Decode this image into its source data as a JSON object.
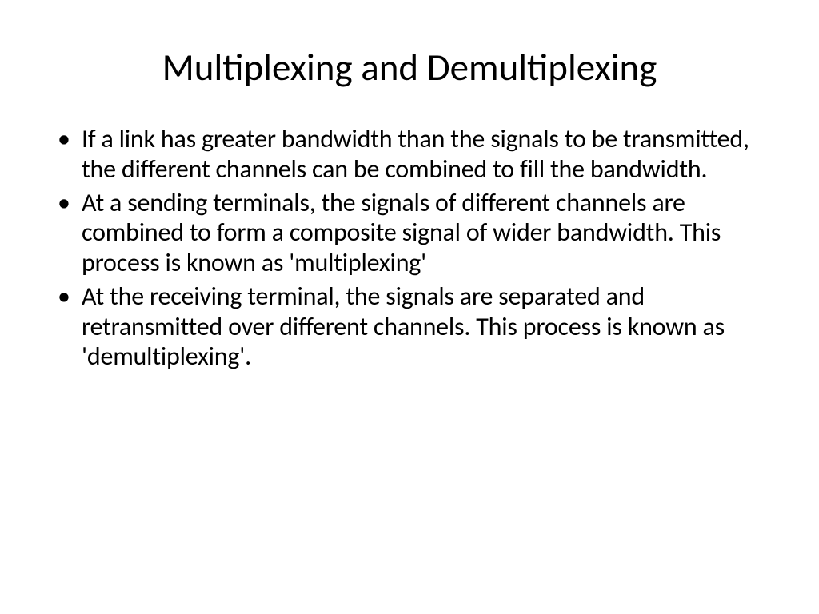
{
  "slide": {
    "title": "Multiplexing and Demultiplexing",
    "bullets": [
      "If a link has greater bandwidth than the signals to be transmitted, the different channels can be combined to fill the bandwidth.",
      "At a sending terminals, the signals of different channels are combined to form a composite signal of wider bandwidth. This process is known as 'multiplexing'",
      "At the receiving terminal, the signals are separated and retransmitted over different channels. This process is known as 'demultiplexing'."
    ]
  },
  "styling": {
    "background_color": "#ffffff",
    "text_color": "#000000",
    "title_fontsize": 47,
    "title_fontweight": 400,
    "body_fontsize": 32,
    "line_height": 1.18,
    "font_family": "Calibri"
  }
}
